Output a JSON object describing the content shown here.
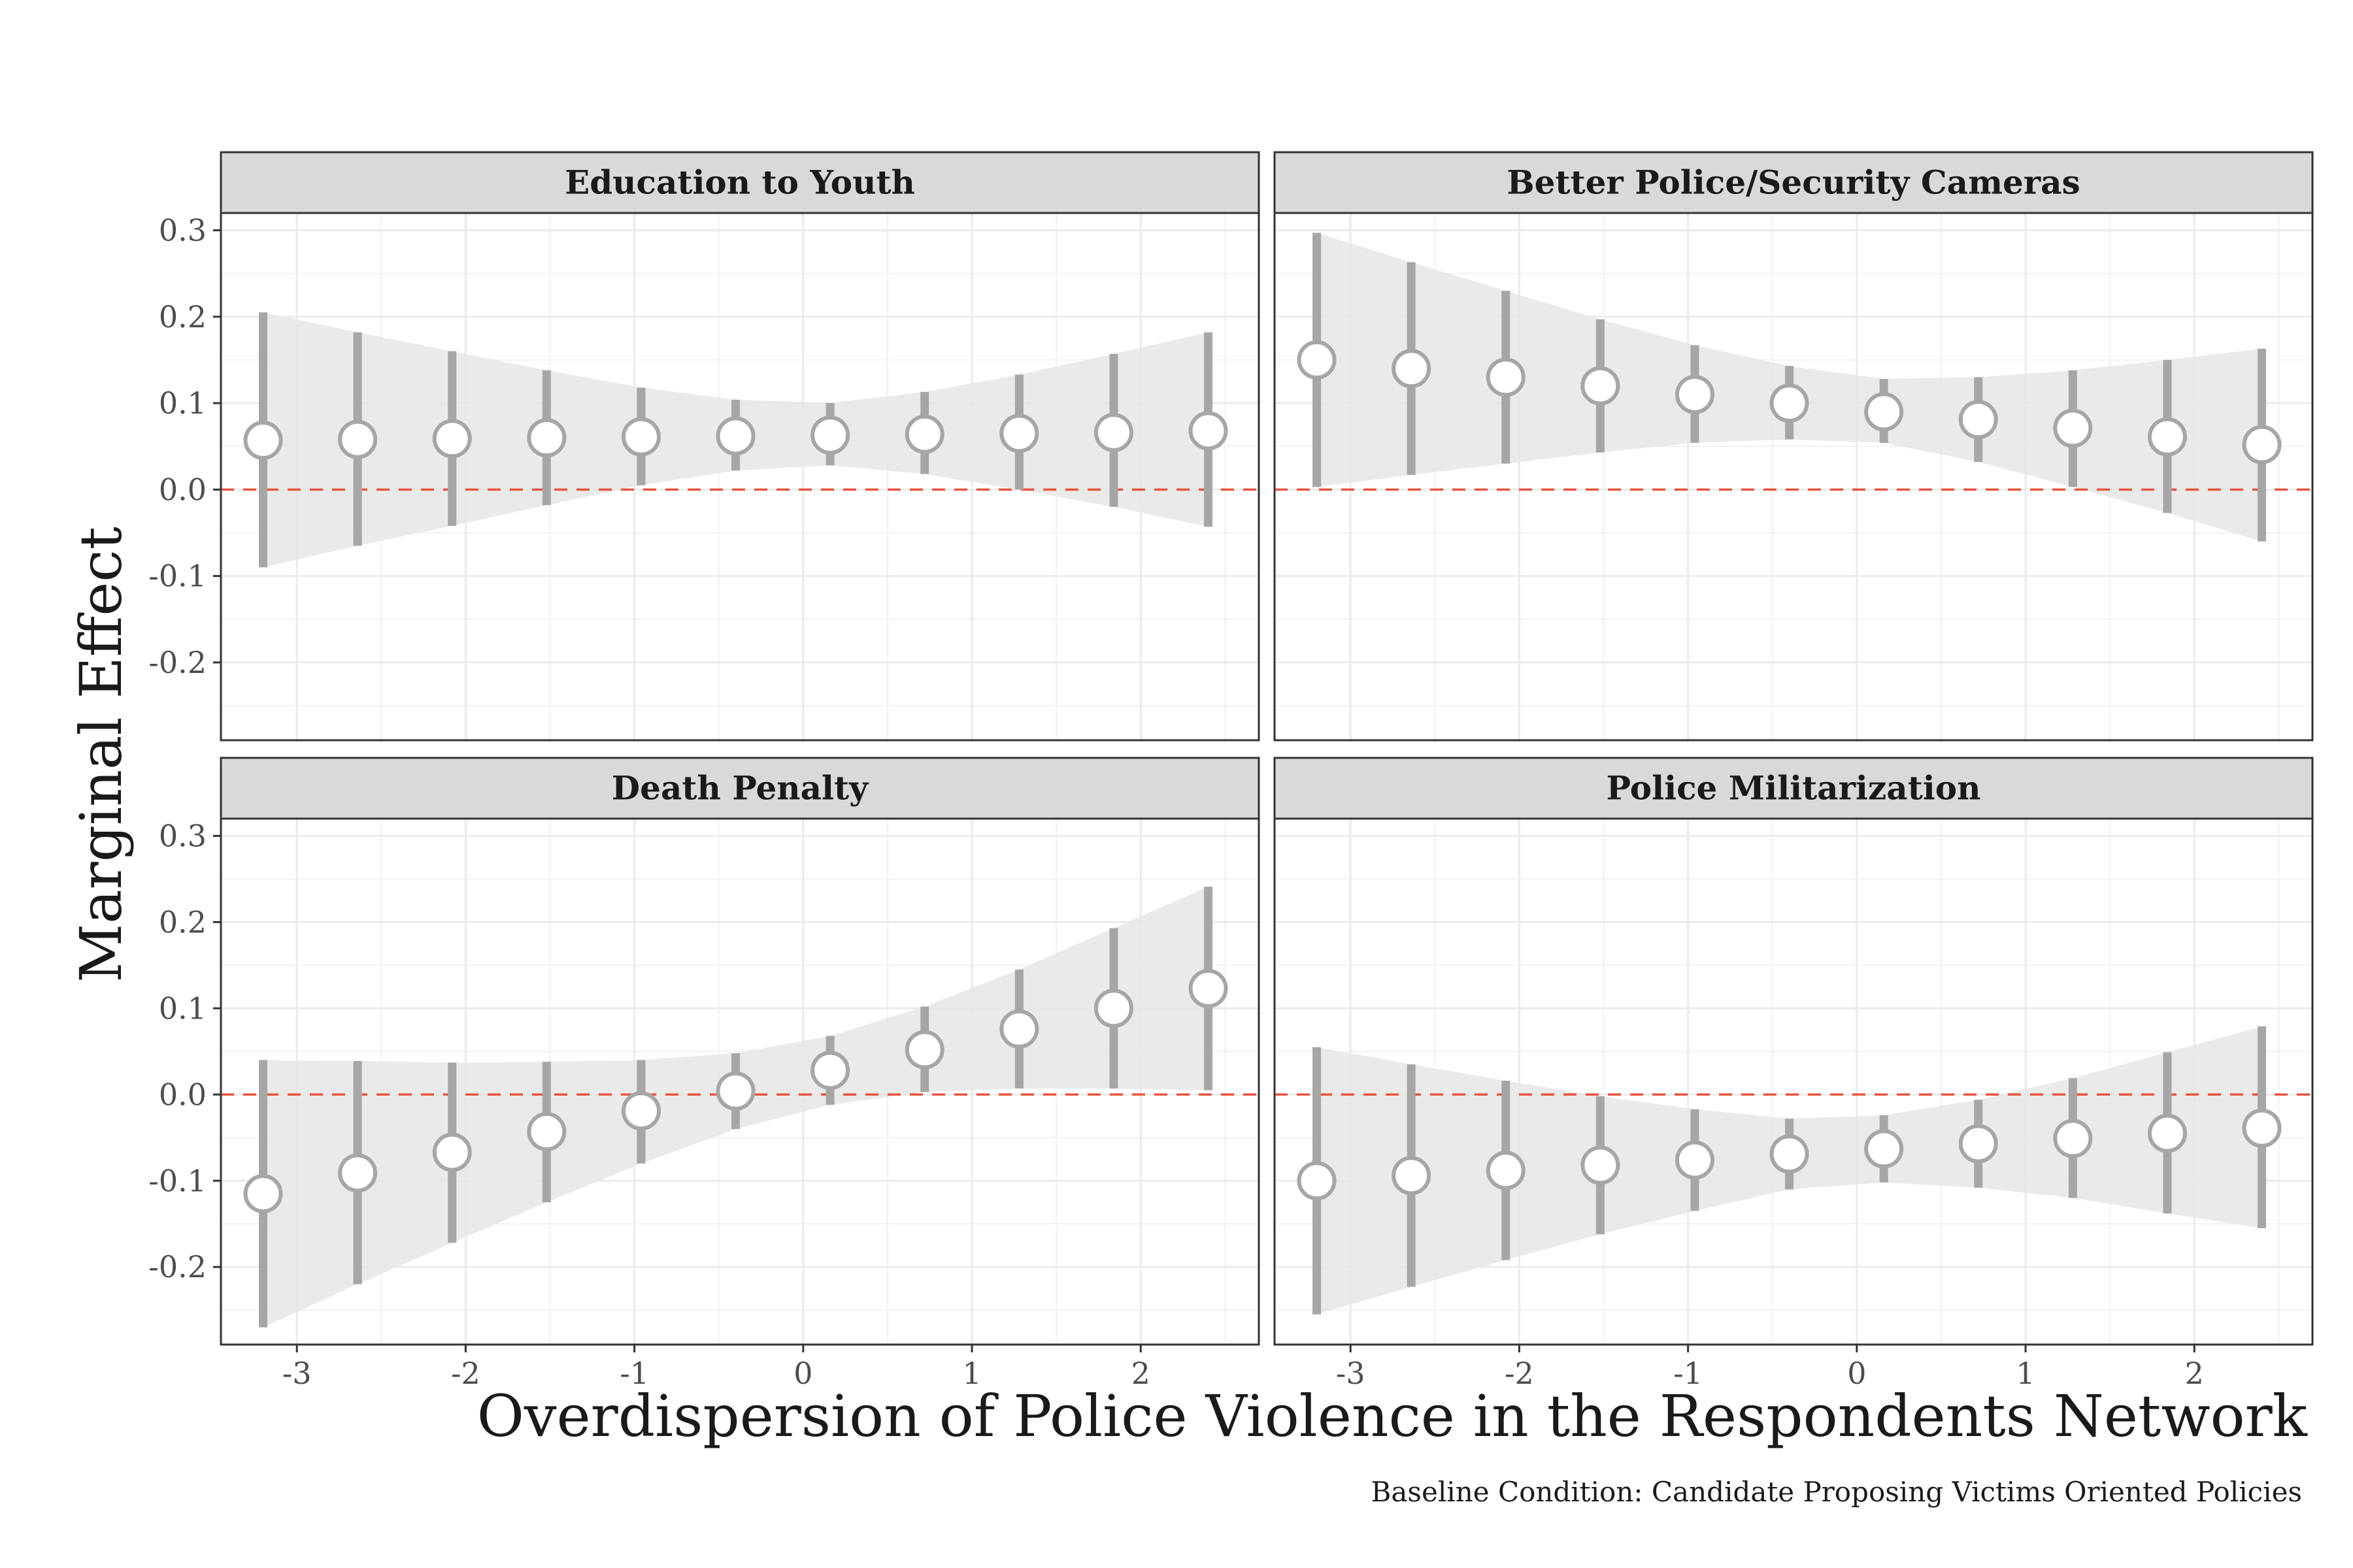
{
  "chart_data": {
    "type": "scatter",
    "subtype": "point-range-facets",
    "xlabel": "Overdispersion of Police Violence in the Respondents Network",
    "ylabel": "Marginal Effect",
    "caption": "Baseline Condition: Candidate Proposing Victims Oriented Policies",
    "xlim": [
      -3.45,
      2.7
    ],
    "ylim": [
      -0.29,
      0.32
    ],
    "x_ticks": [
      -3,
      -2,
      -1,
      0,
      1,
      2
    ],
    "x_tick_labels": [
      "-3",
      "-2",
      "-1",
      "0",
      "1",
      "2"
    ],
    "y_ticks": [
      -0.2,
      -0.1,
      0.0,
      0.1,
      0.2,
      0.3
    ],
    "y_tick_labels": [
      "-0.2",
      "-0.1",
      "0.0",
      "0.1",
      "0.2",
      "0.3"
    ],
    "grid": true,
    "reference_line": {
      "y": 0,
      "style": "dashed",
      "color": "#e8553f"
    },
    "colors": {
      "points": "#a6a6a6",
      "ribbon": "#e6e6e6",
      "strip_bg": "#d9d9d9",
      "grid": "#ebebeb"
    },
    "x": [
      -3.2,
      -2.64,
      -2.08,
      -1.52,
      -0.96,
      -0.4,
      0.16,
      0.72,
      1.28,
      1.84,
      2.4
    ],
    "panels": [
      {
        "title": "Education to Youth",
        "estimate": [
          0.057,
          0.058,
          0.059,
          0.06,
          0.061,
          0.062,
          0.063,
          0.064,
          0.065,
          0.066,
          0.068
        ],
        "lower": [
          -0.09,
          -0.065,
          -0.042,
          -0.018,
          0.005,
          0.022,
          0.028,
          0.018,
          0.0,
          -0.02,
          -0.043
        ],
        "upper": [
          0.205,
          0.182,
          0.16,
          0.138,
          0.118,
          0.104,
          0.1,
          0.113,
          0.133,
          0.157,
          0.182
        ]
      },
      {
        "title": "Better Police/Security Cameras",
        "estimate": [
          0.15,
          0.14,
          0.13,
          0.12,
          0.11,
          0.1,
          0.09,
          0.081,
          0.071,
          0.061,
          0.052
        ],
        "lower": [
          0.003,
          0.017,
          0.03,
          0.043,
          0.054,
          0.058,
          0.054,
          0.032,
          0.003,
          -0.027,
          -0.06
        ],
        "upper": [
          0.297,
          0.263,
          0.23,
          0.197,
          0.167,
          0.143,
          0.128,
          0.13,
          0.138,
          0.15,
          0.163
        ]
      },
      {
        "title": "Death Penalty",
        "estimate": [
          -0.115,
          -0.091,
          -0.067,
          -0.043,
          -0.019,
          0.004,
          0.028,
          0.052,
          0.076,
          0.1,
          0.123
        ],
        "lower": [
          -0.27,
          -0.22,
          -0.172,
          -0.125,
          -0.08,
          -0.04,
          -0.012,
          0.003,
          0.007,
          0.007,
          0.005
        ],
        "upper": [
          0.04,
          0.039,
          0.037,
          0.038,
          0.04,
          0.048,
          0.068,
          0.102,
          0.145,
          0.193,
          0.241
        ]
      },
      {
        "title": "Police Militarization",
        "estimate": [
          -0.1,
          -0.094,
          -0.088,
          -0.082,
          -0.076,
          -0.069,
          -0.063,
          -0.057,
          -0.051,
          -0.045,
          -0.039
        ],
        "lower": [
          -0.255,
          -0.223,
          -0.192,
          -0.162,
          -0.135,
          -0.11,
          -0.102,
          -0.108,
          -0.12,
          -0.138,
          -0.155
        ],
        "upper": [
          0.055,
          0.035,
          0.016,
          -0.002,
          -0.017,
          -0.028,
          -0.024,
          -0.006,
          0.019,
          0.049,
          0.079
        ]
      }
    ]
  }
}
